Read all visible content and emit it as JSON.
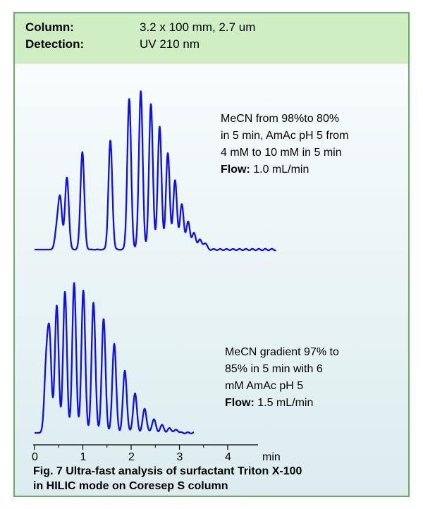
{
  "header": {
    "column_label": "Column:",
    "column_value": "3.2 x 100 mm, 2.7 um",
    "detection_label": "Detection:",
    "detection_value": "UV 210 nm"
  },
  "upper_conditions": {
    "line1": "MeCN from 98%to 80%",
    "line2": "in 5 min, AmAc pH 5 from",
    "line3": "4 mM to 10 mM in 5 min",
    "flow_label": "Flow:",
    "flow_value": "1.0 mL/min"
  },
  "lower_conditions": {
    "line1": "MeCN gradient 97% to",
    "line2": "85% in 5 min with 6",
    "line3": "mM AmAc pH 5",
    "flow_label": "Flow:",
    "flow_value": "1.5 mL/min"
  },
  "caption": {
    "line1": "Fig. 7 Ultra-fast analysis of surfactant Triton X-100",
    "line2": "in HILIC mode on Coresep S column"
  },
  "colors": {
    "trace": "#1010e0",
    "header_bg": "#cfeec4",
    "border": "#6aaa6a"
  },
  "chart_data": [
    {
      "type": "line",
      "xlabel": "min",
      "x_ticks": [
        "0",
        "1",
        "2",
        "3",
        "4"
      ],
      "xlim": [
        0,
        4
      ],
      "peaks": [
        {
          "t": 0.46,
          "h": 0.12
        },
        {
          "t": 0.53,
          "h": 0.31
        },
        {
          "t": 0.67,
          "h": 0.45
        },
        {
          "t": 0.99,
          "h": 0.61
        },
        {
          "t": 1.57,
          "h": 0.68
        },
        {
          "t": 1.96,
          "h": 0.94
        },
        {
          "t": 2.2,
          "h": 0.99
        },
        {
          "t": 2.41,
          "h": 0.91
        },
        {
          "t": 2.59,
          "h": 0.77
        },
        {
          "t": 2.76,
          "h": 0.6
        },
        {
          "t": 2.91,
          "h": 0.43
        },
        {
          "t": 3.05,
          "h": 0.28
        },
        {
          "t": 3.18,
          "h": 0.17
        },
        {
          "t": 3.3,
          "h": 0.1
        },
        {
          "t": 3.42,
          "h": 0.06
        },
        {
          "t": 3.53,
          "h": 0.04
        }
      ]
    },
    {
      "type": "line",
      "xlabel": "min",
      "x_ticks": [
        "0",
        "1",
        "2",
        "3",
        "4"
      ],
      "xlim": [
        0,
        4
      ],
      "peaks": [
        {
          "t": 0.24,
          "h": 0.41
        },
        {
          "t": 0.31,
          "h": 0.61
        },
        {
          "t": 0.46,
          "h": 0.84
        },
        {
          "t": 0.63,
          "h": 0.93
        },
        {
          "t": 0.82,
          "h": 0.99
        },
        {
          "t": 1.01,
          "h": 0.94
        },
        {
          "t": 1.22,
          "h": 0.86
        },
        {
          "t": 1.43,
          "h": 0.75
        },
        {
          "t": 1.65,
          "h": 0.59
        },
        {
          "t": 1.87,
          "h": 0.41
        },
        {
          "t": 2.08,
          "h": 0.26
        },
        {
          "t": 2.28,
          "h": 0.16
        },
        {
          "t": 2.47,
          "h": 0.09
        },
        {
          "t": 2.64,
          "h": 0.05
        },
        {
          "t": 2.8,
          "h": 0.03
        },
        {
          "t": 2.94,
          "h": 0.02
        }
      ]
    }
  ]
}
